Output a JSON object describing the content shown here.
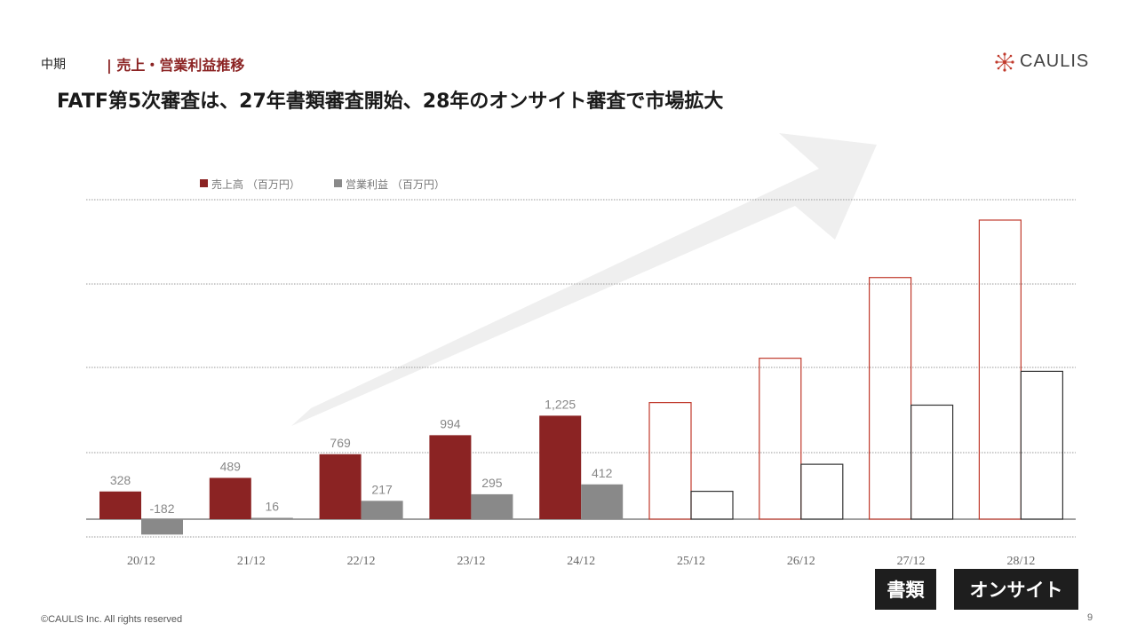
{
  "header": {
    "section_label": "中期",
    "section_title": "| 売上・営業利益推移",
    "headline": "FATF第5次審査は、27年書類審査開始、28年のオンサイト審査で市場拡大"
  },
  "logo": {
    "text": "CAULIS",
    "icon": "network-star-icon"
  },
  "tags": {
    "docs": "書類",
    "onsite": "オンサイト"
  },
  "footer": {
    "copyright": "©CAULIS Inc. All rights reserved",
    "page": "9"
  },
  "colors": {
    "revenue": "#8b2323",
    "profit": "#898989",
    "forecast_outline_revenue": "#c0392b",
    "forecast_outline_profit": "#333333",
    "arrow": "#efefef"
  },
  "chart_data": {
    "type": "bar",
    "categories": [
      "20/12",
      "21/12",
      "22/12",
      "23/12",
      "24/12",
      "25/12",
      "26/12",
      "27/12",
      "28/12"
    ],
    "series": [
      {
        "name": "売上高 （百万円）",
        "values": [
          328,
          489,
          769,
          994,
          1225,
          1380,
          1905,
          2860,
          3540
        ],
        "labels": [
          "328",
          "489",
          "769",
          "994",
          "1,225",
          "",
          "",
          "",
          ""
        ],
        "forecast_from_index": 5
      },
      {
        "name": "営業利益 （百万円）",
        "values": [
          -182,
          16,
          217,
          295,
          412,
          330,
          650,
          1350,
          1750
        ],
        "labels": [
          "-182",
          "16",
          "217",
          "295",
          "412",
          "",
          "",
          "",
          ""
        ],
        "forecast_from_index": 5
      }
    ],
    "ylim": [
      -200,
      3800
    ],
    "grid": true,
    "legend": "top-left",
    "annotation": "upward trend arrow"
  }
}
